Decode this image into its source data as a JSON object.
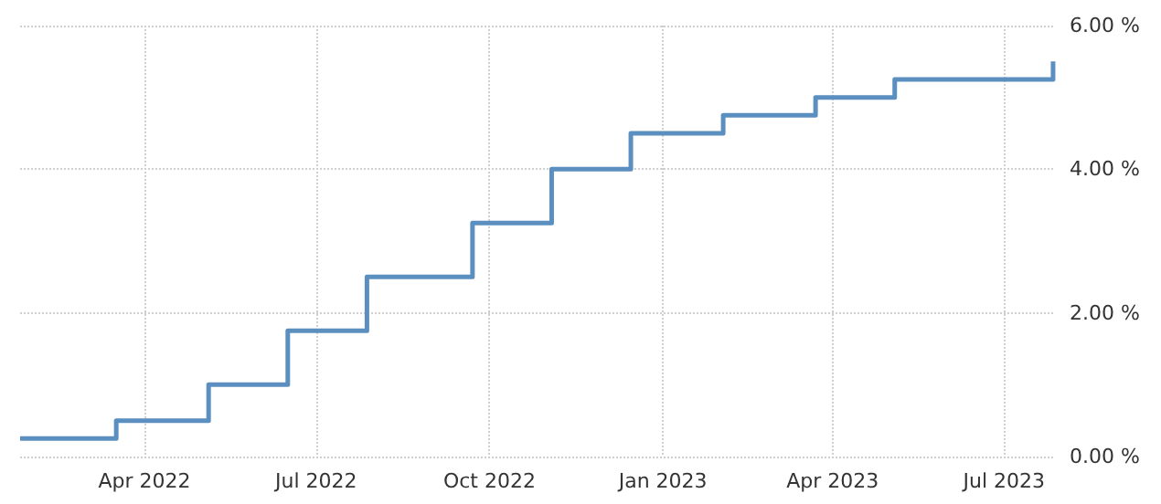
{
  "chart_data": {
    "type": "step",
    "x": [
      "2022-01-25",
      "2022-03-17",
      "2022-05-05",
      "2022-06-16",
      "2022-07-28",
      "2022-09-22",
      "2022-11-03",
      "2022-12-15",
      "2023-02-02",
      "2023-03-23",
      "2023-05-04",
      "2023-07-27"
    ],
    "values": [
      0.25,
      0.5,
      1.0,
      1.75,
      2.5,
      3.25,
      4.0,
      4.5,
      4.75,
      5.0,
      5.25,
      5.5
    ],
    "color": "#5b8fc0",
    "xlim": [
      "2022-01-25",
      "2023-07-28"
    ],
    "xticks": [
      {
        "value": "2022-04",
        "label": "Apr 2022"
      },
      {
        "value": "2022-07",
        "label": "Jul 2022"
      },
      {
        "value": "2022-10",
        "label": "Oct 2022"
      },
      {
        "value": "2023-01",
        "label": "Jan 2023"
      },
      {
        "value": "2023-04",
        "label": "Apr 2023"
      },
      {
        "value": "2023-07",
        "label": "Jul 2023"
      }
    ],
    "ylim": [
      0,
      6
    ],
    "yticks": [
      {
        "value": 0,
        "label": "0.00 %"
      },
      {
        "value": 2,
        "label": "2.00 %"
      },
      {
        "value": 4,
        "label": "4.00 %"
      },
      {
        "value": 6,
        "label": "6.00 %"
      }
    ],
    "grid": true,
    "marker": "none",
    "line_style": "solid"
  }
}
